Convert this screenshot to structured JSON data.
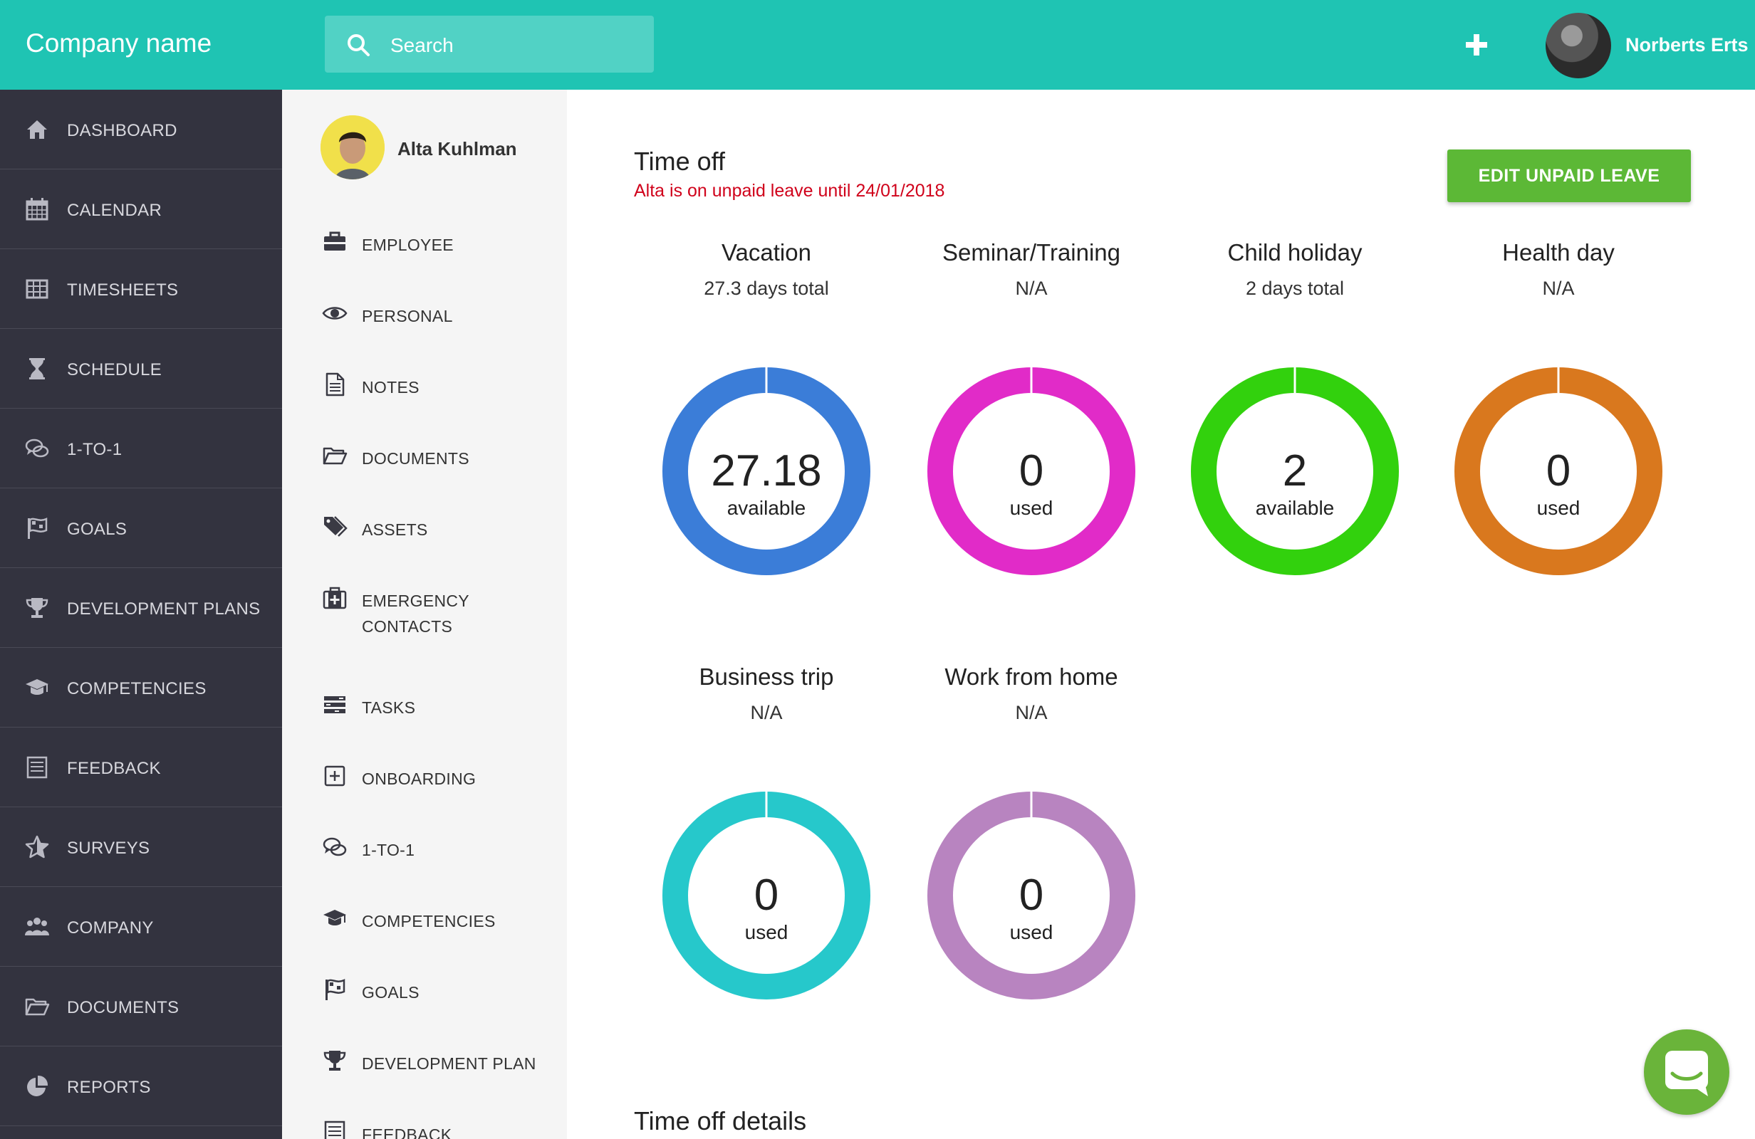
{
  "header": {
    "brand": "Company name",
    "search_placeholder": "Search",
    "user_name": "Norberts Erts"
  },
  "sidebar": {
    "items": [
      {
        "label": "DASHBOARD",
        "icon": "home-icon"
      },
      {
        "label": "CALENDAR",
        "icon": "calendar-icon"
      },
      {
        "label": "TIMESHEETS",
        "icon": "grid-icon"
      },
      {
        "label": "SCHEDULE",
        "icon": "hourglass-icon"
      },
      {
        "label": "1-TO-1",
        "icon": "chat-bubbles-icon"
      },
      {
        "label": "GOALS",
        "icon": "flag-icon"
      },
      {
        "label": "DEVELOPMENT PLANS",
        "icon": "trophy-icon"
      },
      {
        "label": "COMPETENCIES",
        "icon": "graduation-cap-icon"
      },
      {
        "label": "FEEDBACK",
        "icon": "checklist-icon"
      },
      {
        "label": "SURVEYS",
        "icon": "star-icon"
      },
      {
        "label": "COMPANY",
        "icon": "people-icon"
      },
      {
        "label": "DOCUMENTS",
        "icon": "folder-icon"
      },
      {
        "label": "REPORTS",
        "icon": "pie-chart-icon"
      }
    ]
  },
  "profile": {
    "name": "Alta Kuhlman",
    "nav": [
      {
        "label": "EMPLOYEE",
        "icon": "briefcase-icon"
      },
      {
        "label": "PERSONAL",
        "icon": "eye-icon"
      },
      {
        "label": "NOTES",
        "icon": "note-icon"
      },
      {
        "label": "DOCUMENTS",
        "icon": "folder-icon"
      },
      {
        "label": "ASSETS",
        "icon": "tags-icon"
      },
      {
        "label": "EMERGENCY",
        "label2": "CONTACTS",
        "icon": "first-aid-icon"
      },
      {
        "label": "TASKS",
        "icon": "tasks-icon"
      },
      {
        "label": "ONBOARDING",
        "icon": "plus-square-icon"
      },
      {
        "label": "1-TO-1",
        "icon": "chat-bubbles-icon"
      },
      {
        "label": "COMPETENCIES",
        "icon": "graduation-cap-icon"
      },
      {
        "label": "GOALS",
        "icon": "flag-icon"
      },
      {
        "label": "DEVELOPMENT PLAN",
        "icon": "trophy-icon"
      },
      {
        "label": "FEEDBACK",
        "icon": "checklist-icon"
      }
    ]
  },
  "time_off": {
    "title": "Time off",
    "note": "Alta is on unpaid leave until 24/01/2018",
    "edit_button": "EDIT UNPAID LEAVE",
    "details_title": "Time off details",
    "categories": [
      {
        "title": "Vacation",
        "subtitle": "27.3 days total",
        "value": "27.18",
        "unit": "available",
        "color": "#3b7dd8"
      },
      {
        "title": "Seminar/Training",
        "subtitle": "N/A",
        "value": "0",
        "unit": "used",
        "color": "#e12bc8"
      },
      {
        "title": "Child holiday",
        "subtitle": "2 days total",
        "value": "2",
        "unit": "available",
        "color": "#32d10d"
      },
      {
        "title": "Health day",
        "subtitle": "N/A",
        "value": "0",
        "unit": "used",
        "color": "#d9781e"
      },
      {
        "title": "Business trip",
        "subtitle": "N/A",
        "value": "0",
        "unit": "used",
        "color": "#26c8cb"
      },
      {
        "title": "Work from home",
        "subtitle": "N/A",
        "value": "0",
        "unit": "used",
        "color": "#b884c0"
      }
    ]
  },
  "colors": {
    "topbar": "#1fc4b3",
    "sidebar": "#33333f",
    "accent_button": "#5cb836",
    "warning_text": "#d0021b"
  }
}
